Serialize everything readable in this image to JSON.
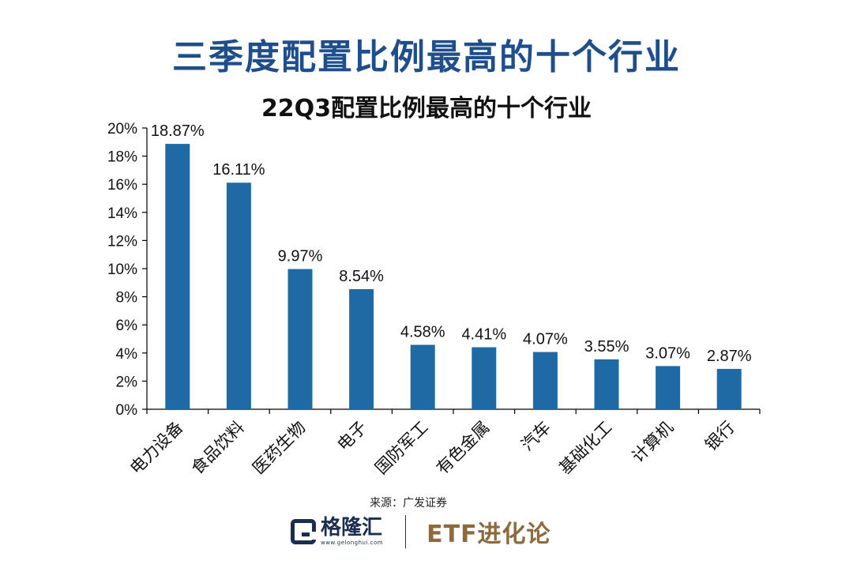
{
  "header": {
    "main_title": "三季度配置比例最高的十个行业"
  },
  "chart_data": {
    "type": "bar",
    "title": "22Q3配置比例最高的十个行业",
    "categories": [
      "电力设备",
      "食品饮料",
      "医药生物",
      "电子",
      "国防军工",
      "有色金属",
      "汽车",
      "基础化工",
      "计算机",
      "银行"
    ],
    "values": [
      18.87,
      16.11,
      9.97,
      8.54,
      4.58,
      4.41,
      4.07,
      3.55,
      3.07,
      2.87
    ],
    "data_labels": [
      "18.87%",
      "16.11%",
      "9.97%",
      "8.54%",
      "4.58%",
      "4.41%",
      "4.07%",
      "3.55%",
      "3.07%",
      "2.87%"
    ],
    "y_ticks": [
      "0%",
      "2%",
      "4%",
      "6%",
      "8%",
      "10%",
      "12%",
      "14%",
      "16%",
      "18%",
      "20%"
    ],
    "ylim": [
      0,
      20
    ],
    "xlabel": "",
    "ylabel": "",
    "bar_color": "#1f6aa5",
    "grid": false,
    "legend": "none"
  },
  "footer": {
    "source": "来源：广发证券",
    "brand_name": "格隆汇",
    "brand_url": "www.gelonghui.com",
    "etf_brand": "ETF进化论"
  },
  "colors": {
    "title": "#1f4e8c",
    "bar": "#1f6aa5",
    "brand_navy": "#1b2e52",
    "brand_gold": "#8c6a3c"
  }
}
